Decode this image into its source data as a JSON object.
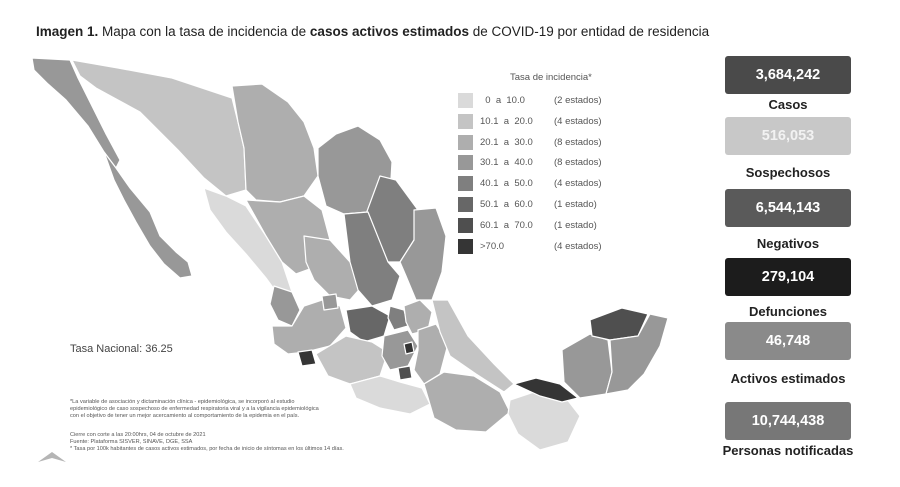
{
  "header": {
    "title_prefix": "Imagen 1.",
    "title_middle": " Mapa con la tasa de incidencia de ",
    "title_bold": "casos activos estimados",
    "title_suffix": " de COVID-19 por entidad de residencia"
  },
  "legend": {
    "title": "Tasa de incidencia*",
    "items": [
      {
        "range": "  0  a  10.0",
        "count": "(2 estados)",
        "color": "#dadada"
      },
      {
        "range": "10.1  a  20.0",
        "count": "(4 estados)",
        "color": "#c4c4c4"
      },
      {
        "range": "20.1  a  30.0",
        "count": "(8 estados)",
        "color": "#aeaeae"
      },
      {
        "range": "30.1  a  40.0",
        "count": "(8 estados)",
        "color": "#989898"
      },
      {
        "range": "40.1  a  50.0",
        "count": "(4 estados)",
        "color": "#7f7f7f"
      },
      {
        "range": "50.1  a  60.0",
        "count": "(1 estado)",
        "color": "#676767"
      },
      {
        "range": "60.1  a  70.0",
        "count": "(1 estado)",
        "color": "#4f4f4f"
      },
      {
        "range": ">70.0",
        "count": "(4 estados)",
        "color": "#353535"
      }
    ]
  },
  "map": {
    "national_rate": "Tasa Nacional: 36.25",
    "notes": [
      "*La variable de asociación y dictaminación clínica - epidemiológica, se incorporó al estudio",
      "epidemiológico de caso sospechoso de enfermedad respiratoria viral y a la vigilancia epidemiológica",
      "con el objetivo de tener un mejor acercamiento al comportamiento de la epidemia en el país.",
      "Cierre con corte a las 20:00hrs, 04 de octubre de 2021",
      "Fuente: Plataforma SISVER, SINAVE, DGE, SSA",
      "* Tasa por 100k habitantes de casos activos estimados, por fecha de inicio de síntomas en los últimos 14 días."
    ]
  },
  "stats": [
    {
      "value": "3,684,242",
      "label": "Casos",
      "color": "#4a4a4a",
      "text_color": "#ffffff"
    },
    {
      "value": "516,053",
      "label": "Sospechosos",
      "color": "#c8c8c8",
      "text_color": "#f2f2f2"
    },
    {
      "value": "6,544,143",
      "label": "Negativos",
      "color": "#5a5a5a",
      "text_color": "#ffffff"
    },
    {
      "value": "279,104",
      "label": "Defunciones",
      "color": "#1c1c1c",
      "text_color": "#ffffff"
    },
    {
      "value": "46,748",
      "label": "Activos estimados",
      "color": "#8a8a8a",
      "text_color": "#ffffff"
    },
    {
      "value": "10,744,438",
      "label": "Personas notificadas",
      "color": "#777777",
      "text_color": "#ffffff"
    }
  ]
}
